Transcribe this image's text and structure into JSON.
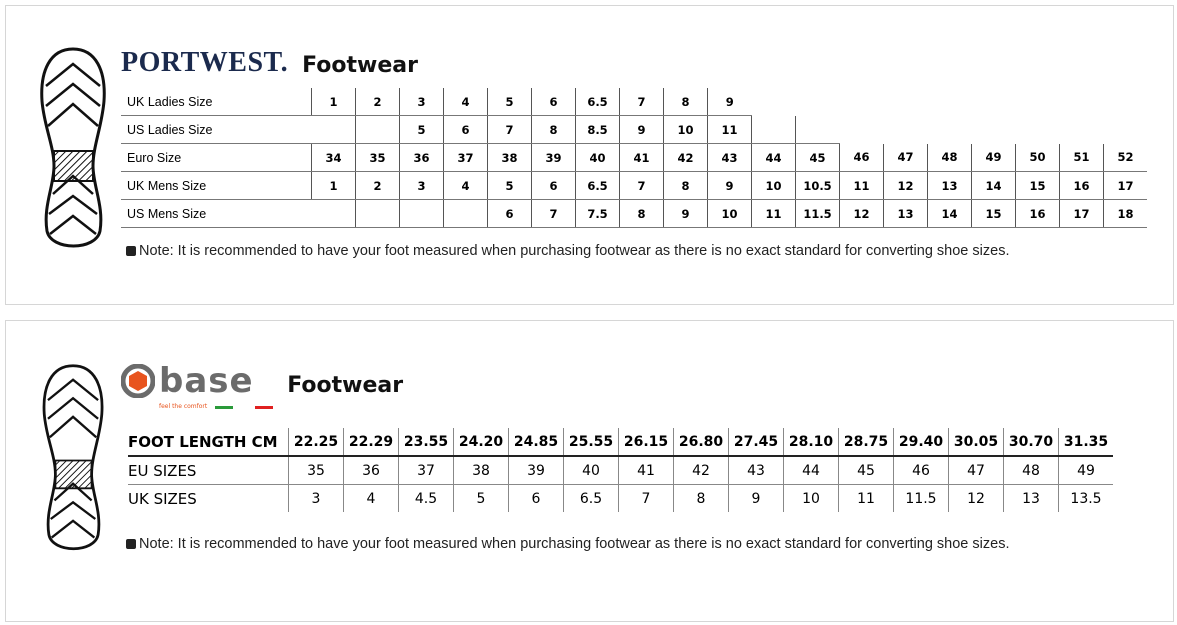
{
  "portwest": {
    "brand": "PORTWEST.",
    "title": "Footwear",
    "rows": [
      {
        "label": "UK Ladies Size",
        "cells": [
          "1",
          "2",
          "3",
          "4",
          "5",
          "6",
          "6.5",
          "7",
          "8",
          "9"
        ]
      },
      {
        "label": "US Ladies Size",
        "cells": [
          null,
          null,
          "5",
          "6",
          "7",
          "8",
          "8.5",
          "9",
          "10",
          "11",
          "",
          ""
        ]
      },
      {
        "label": "Euro Size",
        "cells": [
          "34",
          "35",
          "36",
          "37",
          "38",
          "39",
          "40",
          "41",
          "42",
          "43",
          "44",
          "45",
          "46",
          "47",
          "48",
          "49",
          "50",
          "51",
          "52"
        ]
      },
      {
        "label": "UK Mens Size",
        "cells": [
          "1",
          "2",
          "3",
          "4",
          "5",
          "6",
          "6.5",
          "7",
          "8",
          "9",
          "10",
          "10.5",
          "11",
          "12",
          "13",
          "14",
          "15",
          "16",
          "17"
        ]
      },
      {
        "label": "US Mens Size",
        "cells": [
          null,
          null,
          "",
          "",
          "6",
          "7",
          "7.5",
          "8",
          "9",
          "10",
          "11",
          "11.5",
          "12",
          "13",
          "14",
          "15",
          "16",
          "17",
          "18"
        ]
      }
    ],
    "note": "Note: It is recommended to have your foot measured when purchasing footwear as there is no exact standard for converting shoe sizes."
  },
  "base": {
    "brand": "base",
    "tagline": "feel the comfort",
    "title": "Footwear",
    "colors": {
      "logo_grey": "#6b6b6b",
      "logo_orange": "#e8541e",
      "green": "#2a9a3a",
      "red": "#e02020"
    },
    "rows": [
      {
        "label": "FOOT LENGTH CM",
        "cells": [
          "22.25",
          "22.29",
          "23.55",
          "24.20",
          "24.85",
          "25.55",
          "26.15",
          "26.80",
          "27.45",
          "28.10",
          "28.75",
          "29.40",
          "30.05",
          "30.70",
          "31.35"
        ]
      },
      {
        "label": "EU SIZES",
        "cells": [
          "35",
          "36",
          "37",
          "38",
          "39",
          "40",
          "41",
          "42",
          "43",
          "44",
          "45",
          "46",
          "47",
          "48",
          "49"
        ]
      },
      {
        "label": "UK SIZES",
        "cells": [
          "3",
          "4",
          "4.5",
          "5",
          "6",
          "6.5",
          "7",
          "8",
          "9",
          "10",
          "11",
          "11.5",
          "12",
          "13",
          "13.5"
        ]
      }
    ],
    "note": "Note: It is recommended to have your foot measured when purchasing footwear as there is no exact standard for converting shoe sizes."
  }
}
